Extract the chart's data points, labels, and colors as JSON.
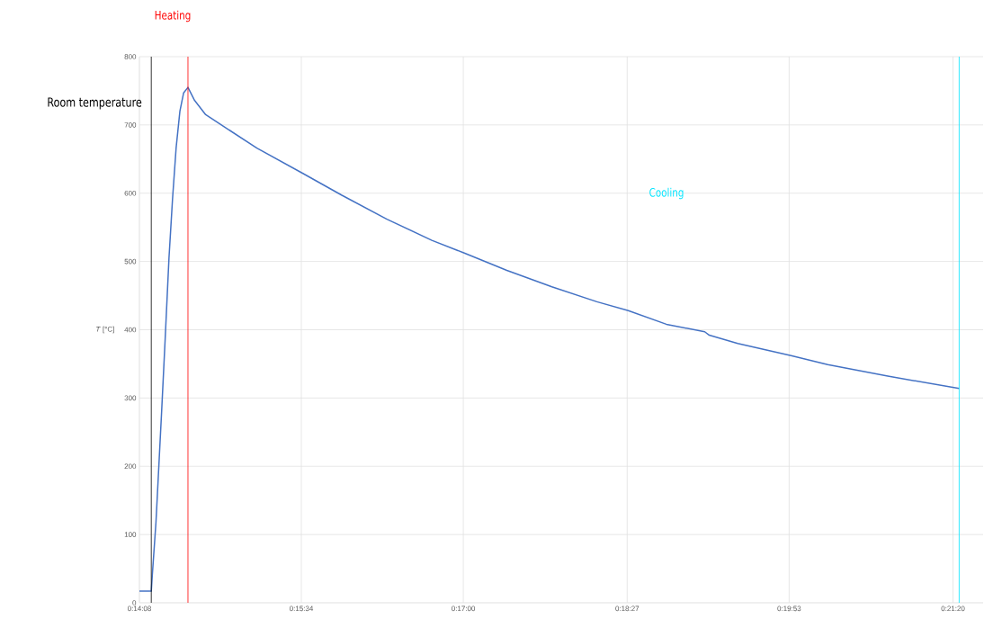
{
  "chart_data": {
    "type": "line",
    "ylabel": "*T* [°C]",
    "x": [
      0.23556,
      0.23731,
      0.23747,
      0.238,
      0.23883,
      0.23936,
      0.23992,
      0.24044,
      0.24097,
      0.24153,
      0.24208,
      0.24272,
      0.24369,
      0.24533,
      0.2475,
      0.25289,
      0.25967,
      0.26542,
      0.27206,
      0.27869,
      0.28356,
      0.28975,
      0.29639,
      0.30303,
      0.30767,
      0.31328,
      0.31894,
      0.31961,
      0.32381,
      0.33167,
      0.33708,
      0.34594,
      0.35647
    ],
    "series": [
      {
        "color": "#4472c4",
        "values": [
          17,
          17,
          42,
          118,
          279,
          387,
          505,
          591,
          666,
          720,
          747,
          755,
          736,
          715,
          701,
          666,
          629,
          597,
          562,
          531,
          512,
          487,
          463,
          441,
          428,
          408,
          397,
          392,
          380,
          362,
          349,
          332,
          314
        ]
      }
    ],
    "xlim": [
      0.23556,
      0.36
    ],
    "ylim": [
      0,
      800
    ],
    "xticks": [
      {
        "value": 0.23556,
        "label": "0:14:08"
      },
      {
        "value": 0.25944,
        "label": "0:15:34"
      },
      {
        "value": 0.28333,
        "label": "0:17:00"
      },
      {
        "value": 0.3075,
        "label": "0:18:27"
      },
      {
        "value": 0.33139,
        "label": "0:19:53"
      },
      {
        "value": 0.35556,
        "label": "0:21:20"
      }
    ],
    "yticks": [
      0,
      100,
      200,
      300,
      400,
      500,
      600,
      700,
      800
    ],
    "grid": true,
    "marker": "none",
    "line_style": "solid",
    "ref_lines": [
      {
        "axis": "x",
        "value": 0.23731,
        "label": "Room temperature",
        "color": "#000000"
      },
      {
        "axis": "x",
        "value": 0.24272,
        "label": "Heating",
        "color": "#ff0000"
      },
      {
        "axis": "x",
        "value": 0.35647,
        "label": "Cooling",
        "color": "#00e5ff"
      }
    ]
  }
}
